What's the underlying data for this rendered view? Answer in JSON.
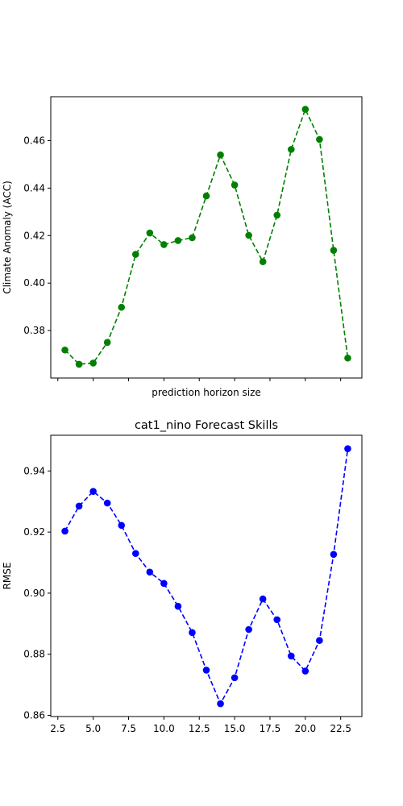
{
  "chart_data": [
    {
      "type": "line",
      "title": "",
      "xlabel": "prediction horizon size",
      "ylabel": "Climate Anomaly (ACC)",
      "x": [
        3,
        4,
        5,
        6,
        7,
        8,
        9,
        10,
        11,
        12,
        13,
        14,
        15,
        16,
        17,
        18,
        19,
        20,
        21,
        22,
        23
      ],
      "series": [
        {
          "values": [
            0.3718,
            0.3658,
            0.3663,
            0.375,
            0.3898,
            0.4121,
            0.4211,
            0.4162,
            0.4179,
            0.4191,
            0.4367,
            0.454,
            0.4413,
            0.4201,
            0.409,
            0.4286,
            0.4563,
            0.4732,
            0.4605,
            0.4138,
            0.3684
          ],
          "color": "#008000"
        }
      ],
      "xlim": [
        2.0,
        24.0
      ],
      "ylim": [
        0.36,
        0.4785
      ],
      "xticks": [
        2.5,
        5.0,
        7.5,
        10.0,
        12.5,
        15.0,
        17.5,
        20.0,
        22.5
      ],
      "xtick_labels_shown": false,
      "yticks": [
        0.38,
        0.4,
        0.42,
        0.44,
        0.46
      ],
      "ytick_labels": [
        "0.38",
        "0.40",
        "0.42",
        "0.44",
        "0.46"
      ],
      "grid": false
    },
    {
      "type": "line",
      "title": "cat1_nino Forecast Skills",
      "xlabel": "",
      "ylabel": "RMSE",
      "x": [
        3,
        4,
        5,
        6,
        7,
        8,
        9,
        10,
        11,
        12,
        13,
        14,
        15,
        16,
        17,
        18,
        19,
        20,
        21,
        22,
        23
      ],
      "series": [
        {
          "values": [
            0.9203,
            0.9285,
            0.9333,
            0.9295,
            0.9222,
            0.913,
            0.9069,
            0.9032,
            0.8957,
            0.8871,
            0.8748,
            0.8638,
            0.8723,
            0.8881,
            0.8981,
            0.8913,
            0.8794,
            0.8745,
            0.8845,
            0.9127,
            0.9473
          ],
          "color": "#0000ff"
        }
      ],
      "xlim": [
        2.0,
        24.0
      ],
      "ylim": [
        0.8596,
        0.9517
      ],
      "xticks": [
        2.5,
        5.0,
        7.5,
        10.0,
        12.5,
        15.0,
        17.5,
        20.0,
        22.5
      ],
      "xtick_labels": [
        "2.5",
        "5.0",
        "7.5",
        "10.0",
        "12.5",
        "15.0",
        "17.5",
        "20.0",
        "22.5"
      ],
      "xtick_labels_shown": true,
      "yticks": [
        0.86,
        0.88,
        0.9,
        0.92,
        0.94
      ],
      "ytick_labels": [
        "0.86",
        "0.88",
        "0.90",
        "0.92",
        "0.94"
      ],
      "grid": false
    }
  ]
}
